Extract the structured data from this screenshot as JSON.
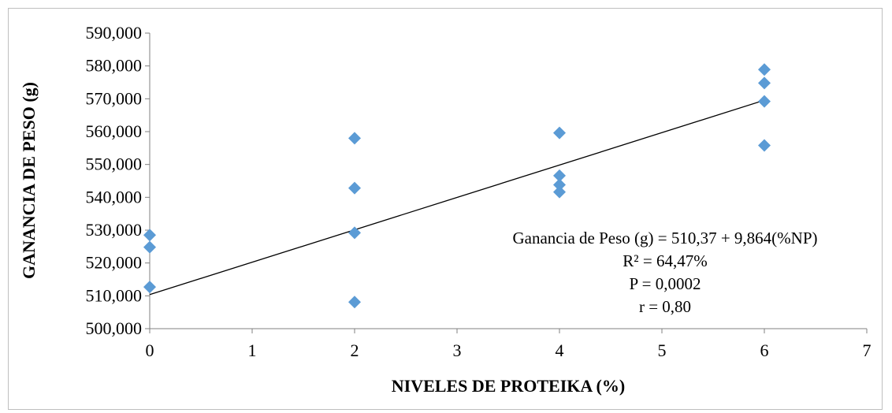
{
  "chart_data": {
    "type": "scatter",
    "xlabel": "NIVELES DE PROTEIKA (%)",
    "ylabel": "GANANCIA DE PESO (g)",
    "xlim": [
      0,
      7
    ],
    "ylim": [
      500,
      590
    ],
    "x_ticks": [
      "0",
      "1",
      "2",
      "3",
      "4",
      "5",
      "6",
      "7"
    ],
    "y_ticks": [
      "500,000",
      "510,000",
      "520,000",
      "530,000",
      "540,000",
      "550,000",
      "560,000",
      "570,000",
      "580,000",
      "590,000"
    ],
    "x_tick_values": [
      0,
      1,
      2,
      3,
      4,
      5,
      6,
      7
    ],
    "y_tick_values": [
      500,
      510,
      520,
      530,
      540,
      550,
      560,
      570,
      580,
      590
    ],
    "grid": false,
    "marker_color": "#5b9bd5",
    "line_color": "#000000",
    "points": [
      {
        "x": 0,
        "y": 528.5
      },
      {
        "x": 0,
        "y": 524.8
      },
      {
        "x": 0,
        "y": 512.7
      },
      {
        "x": 2,
        "y": 558.0
      },
      {
        "x": 2,
        "y": 542.8
      },
      {
        "x": 2,
        "y": 529.2
      },
      {
        "x": 2,
        "y": 508.1
      },
      {
        "x": 4,
        "y": 559.6
      },
      {
        "x": 4,
        "y": 546.6
      },
      {
        "x": 4,
        "y": 543.8
      },
      {
        "x": 4,
        "y": 541.6
      },
      {
        "x": 6,
        "y": 578.9
      },
      {
        "x": 6,
        "y": 574.8
      },
      {
        "x": 6,
        "y": 569.2
      },
      {
        "x": 6,
        "y": 555.8
      }
    ],
    "trendline": {
      "intercept": 510.37,
      "slope": 9.864,
      "x_range": [
        0,
        6
      ]
    },
    "annotations": [
      "Ganancia de Peso (g) = 510,37 + 9,864(%NP)",
      "R² = 64,47%",
      "P = 0,0002",
      "r = 0,80"
    ]
  }
}
